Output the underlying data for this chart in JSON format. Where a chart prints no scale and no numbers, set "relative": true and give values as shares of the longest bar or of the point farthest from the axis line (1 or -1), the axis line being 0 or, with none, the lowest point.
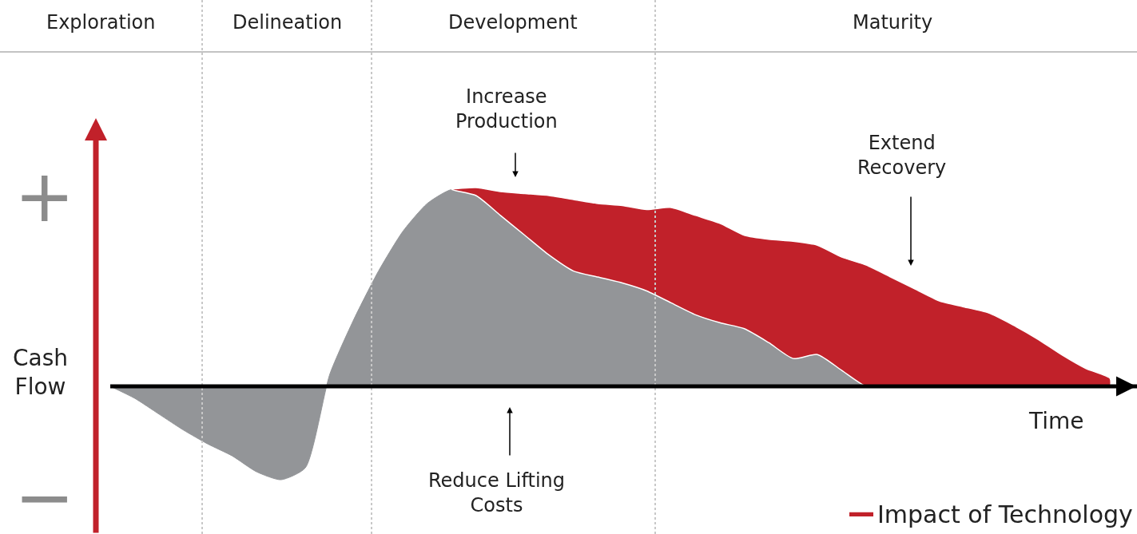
{
  "chart_data": {
    "type": "area",
    "relative": true,
    "stacked": true,
    "xlabel": "Time",
    "ylabel": "Cash\nFlow",
    "categories": [
      null,
      null,
      null,
      null,
      null,
      null,
      null,
      null,
      null,
      null,
      null,
      null,
      null,
      null,
      null,
      null,
      null,
      null,
      null,
      null,
      null,
      null,
      null,
      null,
      null,
      null,
      null,
      null,
      null,
      null,
      null,
      null,
      null,
      null,
      null,
      null,
      null,
      null,
      null,
      null,
      null,
      null,
      null
    ],
    "series": [
      {
        "color": "#939598",
        "values": [
          0,
          -0.06,
          -0.14,
          -0.22,
          -0.29,
          -0.35,
          -0.43,
          -0.47,
          -0.41,
          0.06,
          0.34,
          0.58,
          0.78,
          0.92,
          0.99,
          0.96,
          0.86,
          0.76,
          0.66,
          0.58,
          0.55,
          0.52,
          0.48,
          0.42,
          0.36,
          0.32,
          0.29,
          0.22,
          0.14,
          0.16,
          0.08,
          0,
          0,
          0,
          0,
          0,
          0,
          0,
          0,
          0,
          0,
          0,
          null
        ]
      },
      {
        "name": "Impact of Technology",
        "color": "#c1212a",
        "values": [
          null,
          null,
          null,
          null,
          null,
          null,
          null,
          null,
          null,
          null,
          null,
          null,
          null,
          null,
          0,
          0.04,
          0.12,
          0.21,
          0.3,
          0.36,
          0.37,
          0.39,
          0.41,
          0.48,
          0.5,
          0.5,
          0.47,
          0.52,
          0.59,
          0.55,
          0.57,
          0.61,
          0.55,
          0.49,
          0.43,
          0.4,
          0.37,
          0.31,
          0.24,
          0.16,
          0.09,
          0.04,
          null
        ]
      }
    ],
    "annotations": [
      "Exploration",
      "Delineation",
      "Development",
      "Maturity",
      "Increase\nProduction",
      "Extend\nRecovery",
      "Reduce Lifting\nCosts",
      "+",
      "−"
    ],
    "legend": "bottom right"
  }
}
